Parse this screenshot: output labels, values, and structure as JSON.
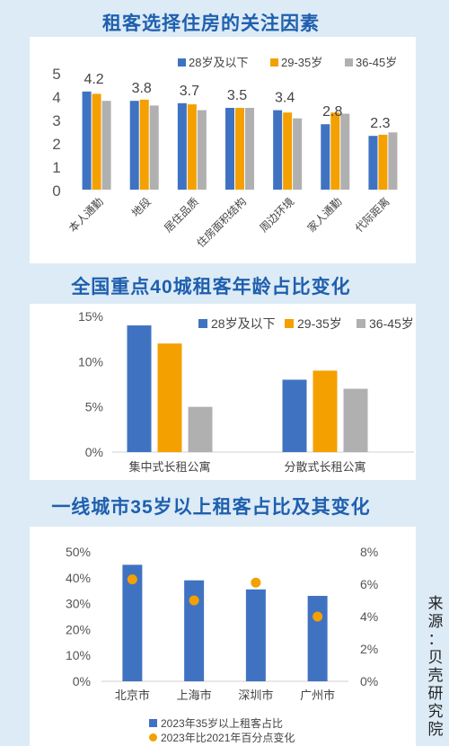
{
  "titles": {
    "chart1": "租客选择住房的关注因素",
    "chart2": "全国重点40城租客年龄占比变化",
    "chart3": "一线城市35岁以上租客占比及其变化"
  },
  "source": [
    "来",
    "源",
    "：",
    "贝",
    "壳",
    "研",
    "究",
    "院"
  ],
  "colors": {
    "blue": "#3f73c2",
    "orange": "#f4a000",
    "gray": "#b0b0b0",
    "title": "#1f5fae"
  },
  "chart_data": [
    {
      "type": "bar",
      "title": "租客选择住房的关注因素",
      "categories": [
        "本人通勤",
        "地段",
        "居住品质",
        "住房面积结构",
        "周边环境",
        "家人通勤",
        "代际距离"
      ],
      "series": [
        {
          "name": "28岁及以下",
          "values": [
            4.2,
            3.8,
            3.7,
            3.5,
            3.4,
            2.8,
            2.3
          ]
        },
        {
          "name": "29-35岁",
          "values": [
            4.1,
            3.85,
            3.65,
            3.5,
            3.3,
            3.3,
            2.35
          ]
        },
        {
          "name": "36-45岁",
          "values": [
            3.8,
            3.6,
            3.4,
            3.5,
            3.05,
            3.25,
            2.45
          ]
        }
      ],
      "data_labels": [
        "4.2",
        "3.8",
        "3.7",
        "3.5",
        "3.4",
        "2.8",
        "2.3"
      ],
      "yticks": [
        "0",
        "1",
        "2",
        "3",
        "4",
        "5"
      ],
      "ylim": [
        0,
        5
      ],
      "legend": "top-right"
    },
    {
      "type": "bar",
      "title": "全国重点40城租客年龄占比变化",
      "categories": [
        "集中式长租公寓",
        "分散式长租公寓"
      ],
      "series": [
        {
          "name": "28岁及以下",
          "values": [
            14,
            8
          ]
        },
        {
          "name": "29-35岁",
          "values": [
            12,
            9
          ]
        },
        {
          "name": "36-45岁",
          "values": [
            5,
            7
          ]
        }
      ],
      "yticks": [
        "0%",
        "5%",
        "10%",
        "15%"
      ],
      "ylim": [
        0,
        15
      ],
      "legend": "top-right"
    },
    {
      "type": "bar",
      "title": "一线城市35岁以上租客占比及其变化",
      "categories": [
        "北京市",
        "上海市",
        "深圳市",
        "广州市"
      ],
      "series": [
        {
          "name": "2023年35岁以上租客占比",
          "kind": "bar",
          "axis": "left",
          "values": [
            45,
            39,
            35.5,
            33
          ]
        },
        {
          "name": "2023年比2021年百分点变化",
          "kind": "scatter",
          "axis": "right",
          "values": [
            6.3,
            5.0,
            6.1,
            4.0
          ]
        }
      ],
      "yticks_left": [
        "0%",
        "10%",
        "20%",
        "30%",
        "40%",
        "50%"
      ],
      "yticks_right": [
        "0%",
        "2%",
        "4%",
        "6%",
        "8%"
      ],
      "ylim_left": [
        0,
        50
      ],
      "ylim_right": [
        0,
        8
      ],
      "legend": "bottom"
    }
  ]
}
